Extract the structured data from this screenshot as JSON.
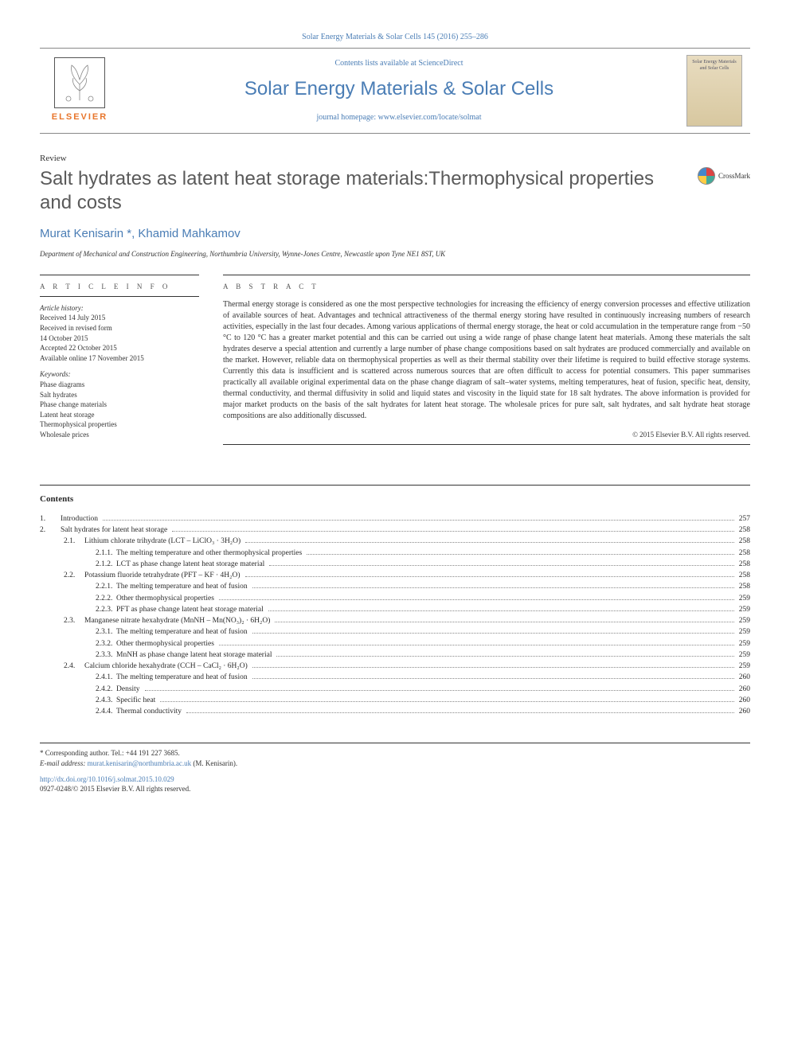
{
  "top_citation": "Solar Energy Materials & Solar Cells 145 (2016) 255–286",
  "masthead": {
    "contents_prefix": "Contents lists available at ",
    "contents_link": "ScienceDirect",
    "journal_title": "Solar Energy Materials & Solar Cells",
    "homepage_prefix": "journal homepage: ",
    "homepage_link": "www.elsevier.com/locate/solmat",
    "elsevier": "ELSEVIER",
    "cover_text": "Solar Energy Materials\nand Solar Cells"
  },
  "article_type": "Review",
  "title": "Salt hydrates as latent heat storage materials:Thermophysical properties and costs",
  "crossmark": "CrossMark",
  "authors_html": "Murat Kenisarin *, Khamid Mahkamov",
  "author1": "Murat Kenisarin",
  "author_sep": ", ",
  "author2": "Khamid Mahkamov",
  "affiliation": "Department of Mechanical and Construction Engineering, Northumbria University, Wynne-Jones Centre, Newcastle upon Tyne NE1 8ST, UK",
  "info": {
    "heading": "A R T I C L E  I N F O",
    "history_hd": "Article history:",
    "history": [
      "Received 14 July 2015",
      "Received in revised form",
      "14 October 2015",
      "Accepted 22 October 2015",
      "Available online 17 November 2015"
    ],
    "keywords_hd": "Keywords:",
    "keywords": [
      "Phase diagrams",
      "Salt hydrates",
      "Phase change materials",
      "Latent heat storage",
      "Thermophysical properties",
      "Wholesale prices"
    ]
  },
  "abstract": {
    "heading": "A B S T R A C T",
    "text": "Thermal energy storage is considered as one the most perspective technologies for increasing the efficiency of energy conversion processes and effective utilization of available sources of heat. Advantages and technical attractiveness of the thermal energy storing have resulted in continuously increasing numbers of research activities, especially in the last four decades. Among various applications of thermal energy storage, the heat or cold accumulation in the temperature range from −50 °C to 120 °C has a greater market potential and this can be carried out using a wide range of phase change latent heat materials. Among these materials the salt hydrates deserve a special attention and currently a large number of phase change compositions based on salt hydrates are produced commercially and available on the market. However, reliable data on thermophysical properties as well as their thermal stability over their lifetime is required to build effective storage systems. Currently this data is insufficient and is scattered across numerous sources that are often difficult to access for potential consumers. This paper summarises practically all available original experimental data on the phase change diagram of salt–water systems, melting temperatures, heat of fusion, specific heat, density, thermal conductivity, and thermal diffusivity in solid and liquid states and viscosity in the liquid state for 18 salt hydrates. The above information is provided for major market products on the basis of the salt hydrates for latent heat storage. The wholesale prices for pure salt, salt hydrates, and salt hydrate heat storage compositions are also additionally discussed.",
    "copyright": "© 2015 Elsevier B.V. All rights reserved."
  },
  "contents_heading": "Contents",
  "toc": [
    {
      "level": 0,
      "num": "1.",
      "label": "Introduction",
      "page": "257"
    },
    {
      "level": 0,
      "num": "2.",
      "label": "Salt hydrates for latent heat storage",
      "page": "258"
    },
    {
      "level": 1,
      "num": "2.1.",
      "label": "Lithium chlorate trihydrate (LCT – LiClO₃ · 3H₂O)",
      "page": "258"
    },
    {
      "level": 2,
      "num": "2.1.1.",
      "label": "The melting temperature and other thermophysical properties",
      "page": "258"
    },
    {
      "level": 2,
      "num": "2.1.2.",
      "label": "LCT as phase change latent heat storage material",
      "page": "258"
    },
    {
      "level": 1,
      "num": "2.2.",
      "label": "Potassium fluoride tetrahydrate (PFT – KF · 4H₂O)",
      "page": "258"
    },
    {
      "level": 2,
      "num": "2.2.1.",
      "label": "The melting temperature and heat of fusion",
      "page": "258"
    },
    {
      "level": 2,
      "num": "2.2.2.",
      "label": "Other thermophysical properties",
      "page": "259"
    },
    {
      "level": 2,
      "num": "2.2.3.",
      "label": "PFT as phase change latent heat storage material",
      "page": "259"
    },
    {
      "level": 1,
      "num": "2.3.",
      "label": "Manganese nitrate hexahydrate (MnNH – Mn(NO₃)₂ · 6H₂O)",
      "page": "259"
    },
    {
      "level": 2,
      "num": "2.3.1.",
      "label": "The melting temperature and heat of fusion",
      "page": "259"
    },
    {
      "level": 2,
      "num": "2.3.2.",
      "label": "Other thermophysical properties",
      "page": "259"
    },
    {
      "level": 2,
      "num": "2.3.3.",
      "label": "MnNH as phase change latent heat storage material",
      "page": "259"
    },
    {
      "level": 1,
      "num": "2.4.",
      "label": "Calcium chloride hexahydrate (CCH – CaCl₂ · 6H₂O)",
      "page": "259"
    },
    {
      "level": 2,
      "num": "2.4.1.",
      "label": "The melting temperature and heat of fusion",
      "page": "260"
    },
    {
      "level": 2,
      "num": "2.4.2.",
      "label": "Density",
      "page": "260"
    },
    {
      "level": 2,
      "num": "2.4.3.",
      "label": "Specific heat",
      "page": "260"
    },
    {
      "level": 2,
      "num": "2.4.4.",
      "label": "Thermal conductivity",
      "page": "260"
    }
  ],
  "footnotes": {
    "corresponding": "* Corresponding author. Tel.: +44 191 227 3685.",
    "email_label": "E-mail address: ",
    "email": "murat.kenisarin@northumbria.ac.uk",
    "email_suffix": " (M. Kenisarin).",
    "doi": "http://dx.doi.org/10.1016/j.solmat.2015.10.029",
    "issn": "0927-0248/© 2015 Elsevier B.V. All rights reserved."
  },
  "colors": {
    "link": "#4a7db5",
    "orange": "#e8762c",
    "text": "#2a2a2a"
  }
}
